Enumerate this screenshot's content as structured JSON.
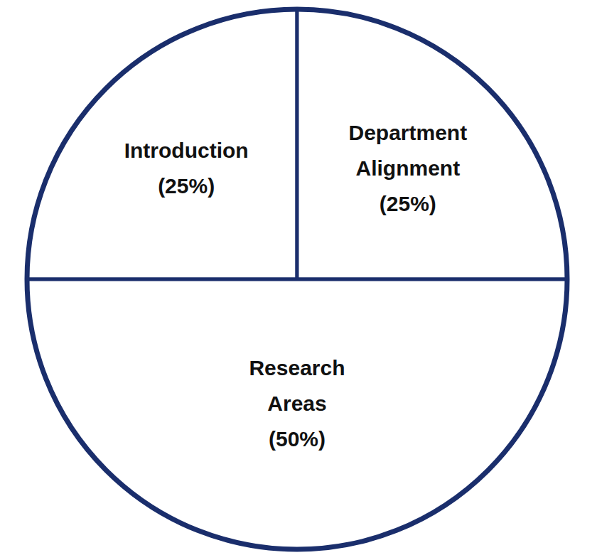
{
  "chart_data": {
    "type": "pie",
    "categories": [
      "Introduction",
      "Department Alignment",
      "Research Areas"
    ],
    "values": [
      25,
      25,
      50
    ],
    "value_labels": [
      "(25%)",
      "(25%)",
      "(50%)"
    ],
    "colors": [
      "#ffffff",
      "#ffffff",
      "#ffffff"
    ],
    "data_labels": true
  }
}
